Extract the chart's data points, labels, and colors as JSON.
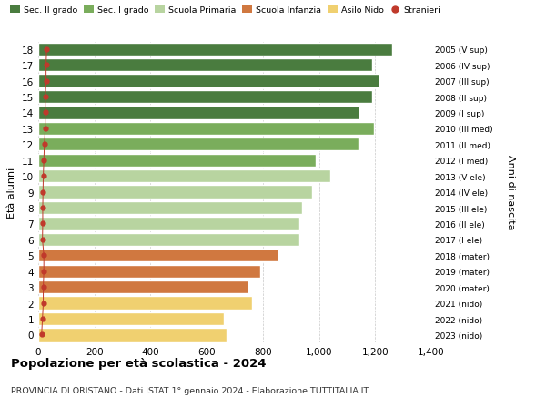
{
  "ages": [
    18,
    17,
    16,
    15,
    14,
    13,
    12,
    11,
    10,
    9,
    8,
    7,
    6,
    5,
    4,
    3,
    2,
    1,
    0
  ],
  "values": [
    1260,
    1190,
    1215,
    1190,
    1145,
    1195,
    1140,
    990,
    1040,
    975,
    940,
    930,
    930,
    855,
    790,
    750,
    760,
    660,
    670
  ],
  "stranieri_vals": [
    30,
    28,
    28,
    25,
    25,
    25,
    22,
    20,
    18,
    17,
    16,
    16,
    15,
    20,
    20,
    18,
    18,
    15,
    12
  ],
  "right_labels": [
    "2005 (V sup)",
    "2006 (IV sup)",
    "2007 (III sup)",
    "2008 (II sup)",
    "2009 (I sup)",
    "2010 (III med)",
    "2011 (II med)",
    "2012 (I med)",
    "2013 (V ele)",
    "2014 (IV ele)",
    "2015 (III ele)",
    "2016 (II ele)",
    "2017 (I ele)",
    "2018 (mater)",
    "2019 (mater)",
    "2020 (mater)",
    "2021 (nido)",
    "2022 (nido)",
    "2023 (nido)"
  ],
  "bar_colors": [
    "#4a7c3f",
    "#4a7c3f",
    "#4a7c3f",
    "#4a7c3f",
    "#4a7c3f",
    "#7aad5c",
    "#7aad5c",
    "#7aad5c",
    "#b8d4a0",
    "#b8d4a0",
    "#b8d4a0",
    "#b8d4a0",
    "#b8d4a0",
    "#d07840",
    "#d07840",
    "#d07840",
    "#f0d070",
    "#f0d070",
    "#f0d070"
  ],
  "legend_labels": [
    "Sec. II grado",
    "Sec. I grado",
    "Scuola Primaria",
    "Scuola Infanzia",
    "Asilo Nido",
    "Stranieri"
  ],
  "legend_colors": [
    "#4a7c3f",
    "#7aad5c",
    "#b8d4a0",
    "#d07840",
    "#f0d070",
    "#c0392b"
  ],
  "stranieri_color": "#c0392b",
  "ylabel": "Età alunni",
  "right_ylabel": "Anni di nascita",
  "title": "Popolazione per età scolastica - 2024",
  "subtitle": "PROVINCIA DI ORISTANO - Dati ISTAT 1° gennaio 2024 - Elaborazione TUTTITALIA.IT",
  "xlim": [
    0,
    1400
  ],
  "xticks": [
    0,
    200,
    400,
    600,
    800,
    1000,
    1200,
    1400
  ],
  "background_color": "#ffffff",
  "bar_edge_color": "#ffffff",
  "grid_color": "#c8c8c8"
}
